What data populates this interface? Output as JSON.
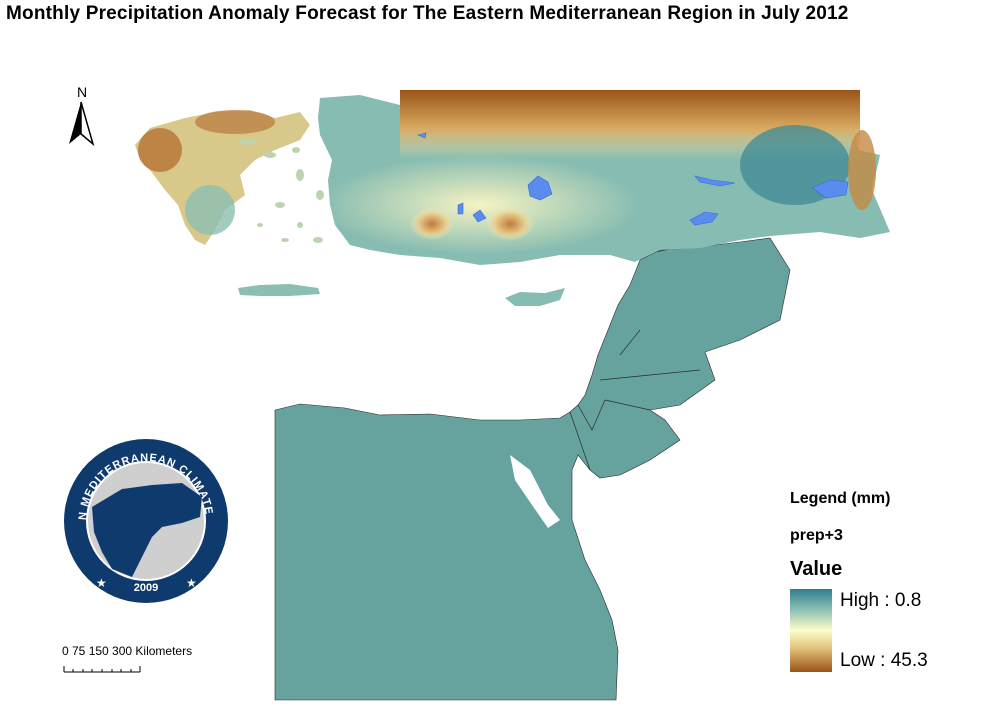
{
  "title": "Monthly Precipitation Anomaly Forecast for The Eastern Mediterranean Region in July 2012",
  "north_arrow": {
    "letter": "N"
  },
  "logo": {
    "ring_text": "EASTERN MEDITERRANEAN CLIMATE CENTRE",
    "year": "2009"
  },
  "scale_bar": {
    "labels": "0   75 150     300 Kilometers"
  },
  "legend": {
    "title": "Legend (mm)",
    "layer": "prep+3",
    "field": "Value",
    "high": "High : 0.8",
    "low": "Low : 45.3"
  },
  "colors": {
    "high": "#2f7e8c",
    "mid": "#fdfdc9",
    "low": "#9a5417",
    "land_default": "#66a39e",
    "lakes": "#5a8cf0"
  }
}
